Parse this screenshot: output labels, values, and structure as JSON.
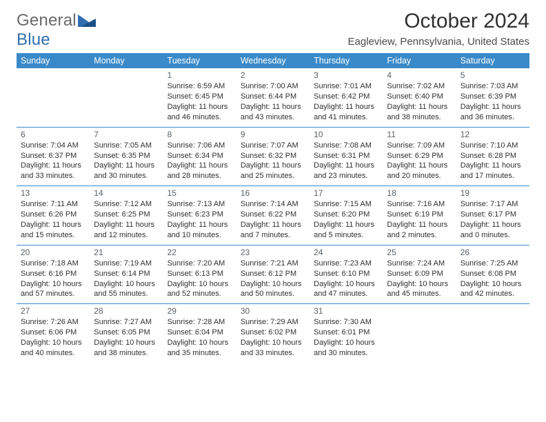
{
  "logo": {
    "general": "General",
    "blue": "Blue"
  },
  "title": "October 2024",
  "subtitle": "Eagleview, Pennsylvania, United States",
  "colors": {
    "header_bg": "#3a8ac9",
    "header_fg": "#ffffff",
    "week_border": "#3a8ac9",
    "text": "#303030",
    "daynum": "#586068",
    "logo_gray": "#6a6a6a",
    "logo_blue": "#2f6fb0"
  },
  "weekdays": [
    "Sunday",
    "Monday",
    "Tuesday",
    "Wednesday",
    "Thursday",
    "Friday",
    "Saturday"
  ],
  "weeks": [
    [
      null,
      null,
      {
        "n": "1",
        "sr": "Sunrise: 6:59 AM",
        "ss": "Sunset: 6:45 PM",
        "d1": "Daylight: 11 hours",
        "d2": "and 46 minutes."
      },
      {
        "n": "2",
        "sr": "Sunrise: 7:00 AM",
        "ss": "Sunset: 6:44 PM",
        "d1": "Daylight: 11 hours",
        "d2": "and 43 minutes."
      },
      {
        "n": "3",
        "sr": "Sunrise: 7:01 AM",
        "ss": "Sunset: 6:42 PM",
        "d1": "Daylight: 11 hours",
        "d2": "and 41 minutes."
      },
      {
        "n": "4",
        "sr": "Sunrise: 7:02 AM",
        "ss": "Sunset: 6:40 PM",
        "d1": "Daylight: 11 hours",
        "d2": "and 38 minutes."
      },
      {
        "n": "5",
        "sr": "Sunrise: 7:03 AM",
        "ss": "Sunset: 6:39 PM",
        "d1": "Daylight: 11 hours",
        "d2": "and 36 minutes."
      }
    ],
    [
      {
        "n": "6",
        "sr": "Sunrise: 7:04 AM",
        "ss": "Sunset: 6:37 PM",
        "d1": "Daylight: 11 hours",
        "d2": "and 33 minutes."
      },
      {
        "n": "7",
        "sr": "Sunrise: 7:05 AM",
        "ss": "Sunset: 6:35 PM",
        "d1": "Daylight: 11 hours",
        "d2": "and 30 minutes."
      },
      {
        "n": "8",
        "sr": "Sunrise: 7:06 AM",
        "ss": "Sunset: 6:34 PM",
        "d1": "Daylight: 11 hours",
        "d2": "and 28 minutes."
      },
      {
        "n": "9",
        "sr": "Sunrise: 7:07 AM",
        "ss": "Sunset: 6:32 PM",
        "d1": "Daylight: 11 hours",
        "d2": "and 25 minutes."
      },
      {
        "n": "10",
        "sr": "Sunrise: 7:08 AM",
        "ss": "Sunset: 6:31 PM",
        "d1": "Daylight: 11 hours",
        "d2": "and 23 minutes."
      },
      {
        "n": "11",
        "sr": "Sunrise: 7:09 AM",
        "ss": "Sunset: 6:29 PM",
        "d1": "Daylight: 11 hours",
        "d2": "and 20 minutes."
      },
      {
        "n": "12",
        "sr": "Sunrise: 7:10 AM",
        "ss": "Sunset: 6:28 PM",
        "d1": "Daylight: 11 hours",
        "d2": "and 17 minutes."
      }
    ],
    [
      {
        "n": "13",
        "sr": "Sunrise: 7:11 AM",
        "ss": "Sunset: 6:26 PM",
        "d1": "Daylight: 11 hours",
        "d2": "and 15 minutes."
      },
      {
        "n": "14",
        "sr": "Sunrise: 7:12 AM",
        "ss": "Sunset: 6:25 PM",
        "d1": "Daylight: 11 hours",
        "d2": "and 12 minutes."
      },
      {
        "n": "15",
        "sr": "Sunrise: 7:13 AM",
        "ss": "Sunset: 6:23 PM",
        "d1": "Daylight: 11 hours",
        "d2": "and 10 minutes."
      },
      {
        "n": "16",
        "sr": "Sunrise: 7:14 AM",
        "ss": "Sunset: 6:22 PM",
        "d1": "Daylight: 11 hours",
        "d2": "and 7 minutes."
      },
      {
        "n": "17",
        "sr": "Sunrise: 7:15 AM",
        "ss": "Sunset: 6:20 PM",
        "d1": "Daylight: 11 hours",
        "d2": "and 5 minutes."
      },
      {
        "n": "18",
        "sr": "Sunrise: 7:16 AM",
        "ss": "Sunset: 6:19 PM",
        "d1": "Daylight: 11 hours",
        "d2": "and 2 minutes."
      },
      {
        "n": "19",
        "sr": "Sunrise: 7:17 AM",
        "ss": "Sunset: 6:17 PM",
        "d1": "Daylight: 11 hours",
        "d2": "and 0 minutes."
      }
    ],
    [
      {
        "n": "20",
        "sr": "Sunrise: 7:18 AM",
        "ss": "Sunset: 6:16 PM",
        "d1": "Daylight: 10 hours",
        "d2": "and 57 minutes."
      },
      {
        "n": "21",
        "sr": "Sunrise: 7:19 AM",
        "ss": "Sunset: 6:14 PM",
        "d1": "Daylight: 10 hours",
        "d2": "and 55 minutes."
      },
      {
        "n": "22",
        "sr": "Sunrise: 7:20 AM",
        "ss": "Sunset: 6:13 PM",
        "d1": "Daylight: 10 hours",
        "d2": "and 52 minutes."
      },
      {
        "n": "23",
        "sr": "Sunrise: 7:21 AM",
        "ss": "Sunset: 6:12 PM",
        "d1": "Daylight: 10 hours",
        "d2": "and 50 minutes."
      },
      {
        "n": "24",
        "sr": "Sunrise: 7:23 AM",
        "ss": "Sunset: 6:10 PM",
        "d1": "Daylight: 10 hours",
        "d2": "and 47 minutes."
      },
      {
        "n": "25",
        "sr": "Sunrise: 7:24 AM",
        "ss": "Sunset: 6:09 PM",
        "d1": "Daylight: 10 hours",
        "d2": "and 45 minutes."
      },
      {
        "n": "26",
        "sr": "Sunrise: 7:25 AM",
        "ss": "Sunset: 6:08 PM",
        "d1": "Daylight: 10 hours",
        "d2": "and 42 minutes."
      }
    ],
    [
      {
        "n": "27",
        "sr": "Sunrise: 7:26 AM",
        "ss": "Sunset: 6:06 PM",
        "d1": "Daylight: 10 hours",
        "d2": "and 40 minutes."
      },
      {
        "n": "28",
        "sr": "Sunrise: 7:27 AM",
        "ss": "Sunset: 6:05 PM",
        "d1": "Daylight: 10 hours",
        "d2": "and 38 minutes."
      },
      {
        "n": "29",
        "sr": "Sunrise: 7:28 AM",
        "ss": "Sunset: 6:04 PM",
        "d1": "Daylight: 10 hours",
        "d2": "and 35 minutes."
      },
      {
        "n": "30",
        "sr": "Sunrise: 7:29 AM",
        "ss": "Sunset: 6:02 PM",
        "d1": "Daylight: 10 hours",
        "d2": "and 33 minutes."
      },
      {
        "n": "31",
        "sr": "Sunrise: 7:30 AM",
        "ss": "Sunset: 6:01 PM",
        "d1": "Daylight: 10 hours",
        "d2": "and 30 minutes."
      },
      null,
      null
    ]
  ]
}
